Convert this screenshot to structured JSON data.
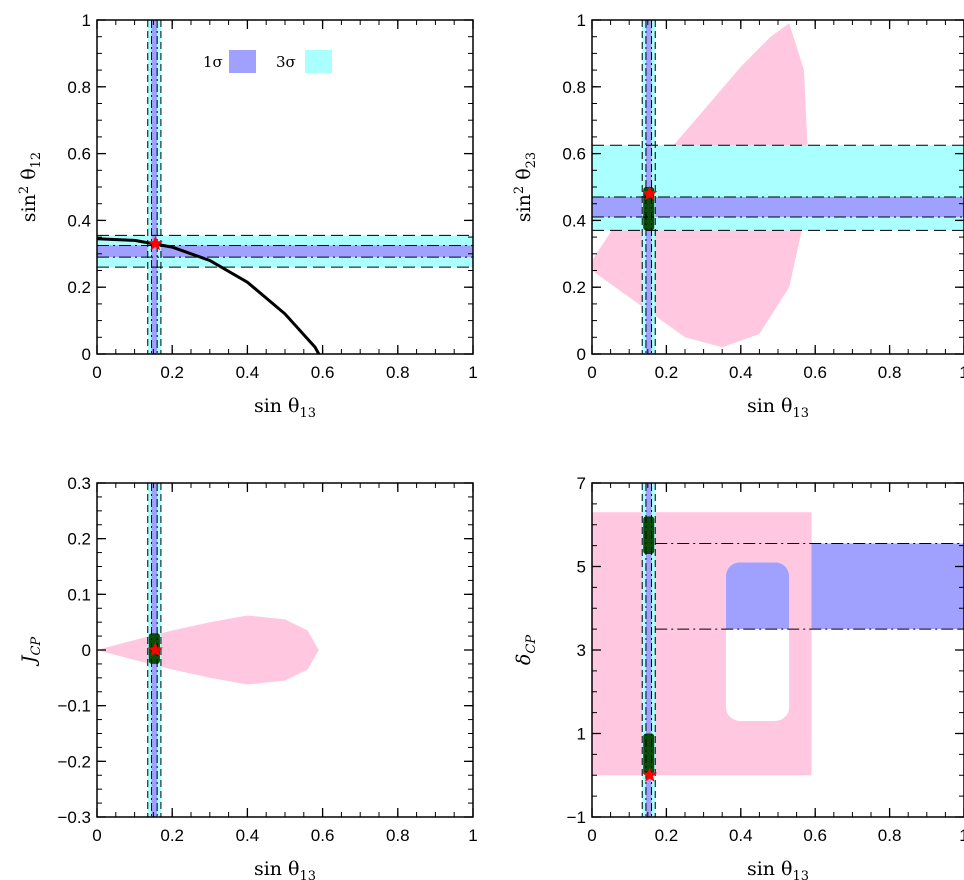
{
  "colors": {
    "band_1sigma": "#a0a0ff",
    "band_3sigma": "#aaffff",
    "allowed_region": "#ffc8e0",
    "fit_points": "#0a4d0a",
    "best_fit_star": "#ff0000",
    "relation_curve": "#000000"
  },
  "legend": {
    "one_sigma": "1σ",
    "three_sigma": "3σ"
  },
  "chart_data": [
    {
      "type": "area",
      "id": "s12_vs_s13",
      "xlabel": "sin θ13",
      "ylabel": "sin² θ12",
      "xlim": [
        0,
        1
      ],
      "ylim": [
        0,
        1
      ],
      "xticks": [
        "0",
        "0.2",
        "0.4",
        "0.6",
        "0.8",
        "1"
      ],
      "yticks": [
        "0",
        "0.2",
        "0.4",
        "0.6",
        "0.8",
        "1"
      ],
      "bands": {
        "x_1sigma": [
          0.145,
          0.16
        ],
        "x_3sigma": [
          0.135,
          0.17
        ],
        "y_1sigma": [
          0.29,
          0.325
        ],
        "y_3sigma": [
          0.26,
          0.355
        ]
      },
      "best_fit": {
        "x": 0.155,
        "y": 0.33
      },
      "curve": {
        "name": "",
        "x": [
          0.0,
          0.1,
          0.2,
          0.3,
          0.4,
          0.5,
          0.58,
          0.59
        ],
        "y": [
          0.345,
          0.34,
          0.32,
          0.28,
          0.215,
          0.12,
          0.02,
          0.0
        ]
      }
    },
    {
      "type": "area",
      "id": "s23_vs_s13",
      "xlabel": "sin θ13",
      "ylabel": "sin² θ23",
      "xlim": [
        0,
        1
      ],
      "ylim": [
        0,
        1
      ],
      "xticks": [
        "0",
        "0.2",
        "0.4",
        "0.6",
        "0.8",
        "1"
      ],
      "yticks": [
        "0",
        "0.2",
        "0.4",
        "0.6",
        "0.8",
        "1"
      ],
      "bands": {
        "x_1sigma": [
          0.145,
          0.16
        ],
        "x_3sigma": [
          0.135,
          0.17
        ],
        "y_1sigma": [
          0.41,
          0.47
        ],
        "y_3sigma": [
          0.37,
          0.625
        ]
      },
      "best_fit": {
        "x": 0.155,
        "y": 0.48
      },
      "fit_region": {
        "x": [
          0.135,
          0.17
        ],
        "y": [
          0.37,
          0.5
        ]
      },
      "allowed_outline": {
        "x": [
          0.0,
          0.1,
          0.2,
          0.3,
          0.4,
          0.48,
          0.53,
          0.57,
          0.58,
          0.57,
          0.53,
          0.45,
          0.35,
          0.25,
          0.15,
          0.05,
          0.0
        ],
        "y": [
          0.28,
          0.45,
          0.6,
          0.73,
          0.86,
          0.95,
          0.99,
          0.85,
          0.6,
          0.4,
          0.2,
          0.06,
          0.02,
          0.05,
          0.13,
          0.21,
          0.25
        ]
      }
    },
    {
      "type": "area",
      "id": "jcp_vs_s13",
      "xlabel": "sin θ13",
      "ylabel": "JCP",
      "xlim": [
        0,
        1
      ],
      "ylim": [
        -0.3,
        0.3
      ],
      "xticks": [
        "0",
        "0.2",
        "0.4",
        "0.6",
        "0.8",
        "1"
      ],
      "yticks": [
        "−0.3",
        "−0.2",
        "−0.1",
        "0",
        "0.1",
        "0.2",
        "0.3"
      ],
      "bands": {
        "x_1sigma": [
          0.145,
          0.16
        ],
        "x_3sigma": [
          0.135,
          0.17
        ]
      },
      "best_fit": {
        "x": 0.155,
        "y": 0.0
      },
      "fit_region": {
        "x": [
          0.135,
          0.17
        ],
        "y": [
          -0.025,
          0.03
        ]
      },
      "allowed_outline": {
        "x": [
          0.0,
          0.1,
          0.2,
          0.3,
          0.4,
          0.5,
          0.56,
          0.59,
          0.56,
          0.5,
          0.4,
          0.3,
          0.2,
          0.1,
          0.0
        ],
        "y": [
          0.0,
          0.018,
          0.035,
          0.05,
          0.062,
          0.055,
          0.035,
          0.0,
          -0.035,
          -0.055,
          -0.062,
          -0.05,
          -0.035,
          -0.018,
          0.0
        ]
      }
    },
    {
      "type": "area",
      "id": "dcp_vs_s13",
      "xlabel": "sin θ13",
      "ylabel": "δCP",
      "xlim": [
        0,
        1
      ],
      "ylim": [
        -1,
        7
      ],
      "xticks": [
        "0",
        "0.2",
        "0.4",
        "0.6",
        "0.8",
        "1"
      ],
      "yticks": [
        "−1",
        "1",
        "3",
        "5",
        "7"
      ],
      "bands": {
        "x_1sigma": [
          0.145,
          0.16
        ],
        "x_3sigma": [
          0.135,
          0.17
        ],
        "y_1sigma": [
          3.5,
          5.55
        ]
      },
      "best_fit": {
        "x": 0.155,
        "y": 0.0
      },
      "fit_region_upper": {
        "x": [
          0.135,
          0.17
        ],
        "y": [
          5.3,
          6.2
        ]
      },
      "fit_region_lower": {
        "x": [
          0.135,
          0.17
        ],
        "y": [
          0.0,
          1.0
        ]
      },
      "allowed_rect": {
        "x": [
          0.0,
          0.59
        ],
        "y": [
          0.0,
          6.3
        ]
      },
      "hole": {
        "x": [
          0.36,
          0.53
        ],
        "y": [
          1.3,
          5.1
        ]
      }
    }
  ]
}
